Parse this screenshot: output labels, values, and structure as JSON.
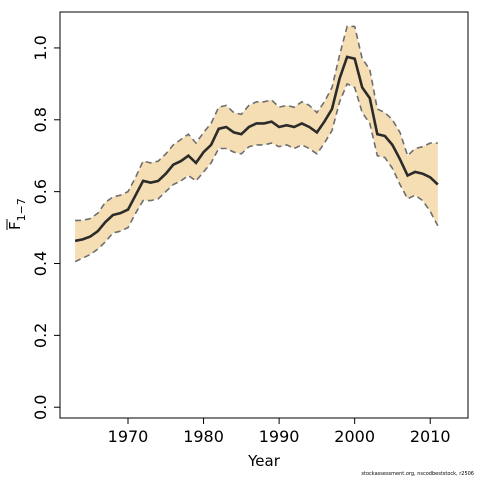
{
  "chart_data": {
    "type": "line",
    "xlabel": "Year",
    "ylabel": "F",
    "ylabel_subscript": "1−7",
    "xlim": [
      1961,
      2015
    ],
    "ylim": [
      -0.03,
      1.1
    ],
    "x_ticks": [
      "1970",
      "1980",
      "1990",
      "2000",
      "2010"
    ],
    "y_ticks": [
      "0.0",
      "0.2",
      "0.4",
      "0.6",
      "0.8",
      "1.0"
    ],
    "grid": false,
    "legend": "none",
    "colors": {
      "band": "#f5deb3",
      "bound": "#6e6e6e",
      "line": "#2b2b2b"
    },
    "x": [
      1963,
      1964,
      1965,
      1966,
      1967,
      1968,
      1969,
      1970,
      1971,
      1972,
      1973,
      1974,
      1975,
      1976,
      1977,
      1978,
      1979,
      1980,
      1981,
      1982,
      1983,
      1984,
      1985,
      1986,
      1987,
      1988,
      1989,
      1990,
      1991,
      1992,
      1993,
      1994,
      1995,
      1996,
      1997,
      1998,
      1999,
      2000,
      2001,
      2002,
      2003,
      2004,
      2005,
      2006,
      2007,
      2008,
      2009,
      2010,
      2011
    ],
    "series": [
      {
        "role": "estimate",
        "values": [
          0.463,
          0.467,
          0.475,
          0.49,
          0.515,
          0.535,
          0.54,
          0.55,
          0.59,
          0.63,
          0.625,
          0.63,
          0.65,
          0.675,
          0.685,
          0.7,
          0.68,
          0.71,
          0.73,
          0.775,
          0.78,
          0.765,
          0.76,
          0.78,
          0.79,
          0.79,
          0.795,
          0.78,
          0.785,
          0.78,
          0.79,
          0.78,
          0.765,
          0.795,
          0.83,
          0.915,
          0.975,
          0.97,
          0.89,
          0.86,
          0.76,
          0.755,
          0.73,
          0.69,
          0.645,
          0.655,
          0.65,
          0.64,
          0.62
        ]
      },
      {
        "role": "upper",
        "values": [
          0.52,
          0.52,
          0.525,
          0.54,
          0.57,
          0.585,
          0.59,
          0.6,
          0.64,
          0.685,
          0.68,
          0.685,
          0.705,
          0.73,
          0.745,
          0.76,
          0.735,
          0.765,
          0.79,
          0.835,
          0.84,
          0.82,
          0.815,
          0.84,
          0.85,
          0.85,
          0.855,
          0.835,
          0.84,
          0.835,
          0.85,
          0.84,
          0.82,
          0.85,
          0.89,
          0.98,
          1.06,
          1.06,
          0.97,
          0.94,
          0.83,
          0.82,
          0.8,
          0.765,
          0.7,
          0.72,
          0.725,
          0.735,
          0.735
        ]
      },
      {
        "role": "lower",
        "values": [
          0.405,
          0.415,
          0.425,
          0.44,
          0.46,
          0.485,
          0.49,
          0.5,
          0.54,
          0.575,
          0.575,
          0.58,
          0.6,
          0.62,
          0.63,
          0.645,
          0.63,
          0.655,
          0.68,
          0.72,
          0.72,
          0.71,
          0.705,
          0.725,
          0.73,
          0.73,
          0.735,
          0.725,
          0.73,
          0.72,
          0.73,
          0.72,
          0.705,
          0.735,
          0.77,
          0.85,
          0.9,
          0.89,
          0.82,
          0.79,
          0.7,
          0.695,
          0.665,
          0.62,
          0.58,
          0.59,
          0.575,
          0.545,
          0.505
        ]
      }
    ]
  },
  "footer_text": "stockassessment.org, nscodbeststock, r2506"
}
